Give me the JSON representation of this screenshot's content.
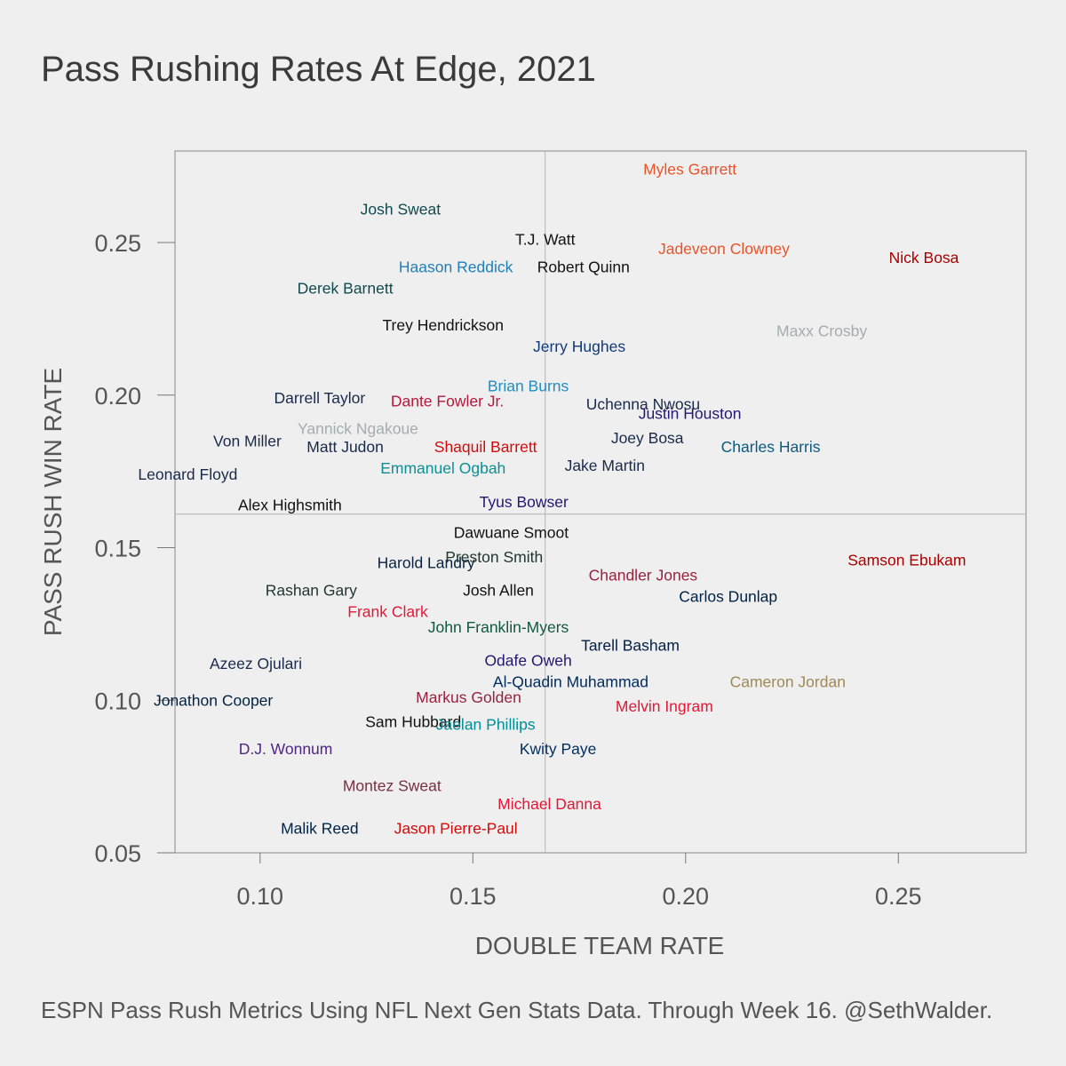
{
  "chart_data": {
    "type": "scatter",
    "title": "Pass Rushing Rates At Edge, 2021",
    "xlabel": "DOUBLE TEAM RATE",
    "ylabel": "PASS RUSH WIN RATE",
    "caption": "ESPN Pass Rush Metrics Using NFL Next Gen Stats Data. Through Week 16. @SethWalder.",
    "xlim": [
      0.08,
      0.28
    ],
    "ylim": [
      0.05,
      0.28
    ],
    "xticks": [
      0.1,
      0.15,
      0.2,
      0.25
    ],
    "yticks": [
      0.05,
      0.1,
      0.15,
      0.2,
      0.25
    ],
    "xtick_labels": [
      "0.10",
      "0.15",
      "0.20",
      "0.25"
    ],
    "ytick_labels": [
      "0.05",
      "0.10",
      "0.15",
      "0.20",
      "0.25"
    ],
    "reference_lines": {
      "x": 0.167,
      "y": 0.161
    },
    "points": [
      {
        "name": "Myles Garrett",
        "x": 0.201,
        "y": 0.274,
        "color": "#e8542a"
      },
      {
        "name": "Josh Sweat",
        "x": 0.133,
        "y": 0.261,
        "color": "#0f4a50"
      },
      {
        "name": "T.J. Watt",
        "x": 0.167,
        "y": 0.251,
        "color": "#111111"
      },
      {
        "name": "Jadeveon Clowney",
        "x": 0.209,
        "y": 0.248,
        "color": "#e8542a"
      },
      {
        "name": "Nick Bosa",
        "x": 0.256,
        "y": 0.245,
        "color": "#aa0000"
      },
      {
        "name": "Haason Reddick",
        "x": 0.146,
        "y": 0.242,
        "color": "#1f7fb8"
      },
      {
        "name": "Robert Quinn",
        "x": 0.176,
        "y": 0.242,
        "color": "#111111"
      },
      {
        "name": "Derek Barnett",
        "x": 0.12,
        "y": 0.235,
        "color": "#0f4a50"
      },
      {
        "name": "Trey Hendrickson",
        "x": 0.143,
        "y": 0.223,
        "color": "#111111"
      },
      {
        "name": "Maxx Crosby",
        "x": 0.232,
        "y": 0.221,
        "color": "#a5acaf"
      },
      {
        "name": "Jerry Hughes",
        "x": 0.175,
        "y": 0.216,
        "color": "#123a7a"
      },
      {
        "name": "Brian Burns",
        "x": 0.163,
        "y": 0.203,
        "color": "#1f8dc4"
      },
      {
        "name": "Darrell Taylor",
        "x": 0.114,
        "y": 0.199,
        "color": "#1a2a4a"
      },
      {
        "name": "Dante Fowler Jr.",
        "x": 0.144,
        "y": 0.198,
        "color": "#b5193c"
      },
      {
        "name": "Uchenna Nwosu",
        "x": 0.19,
        "y": 0.197,
        "color": "#1a2a4a"
      },
      {
        "name": "Justin Houston",
        "x": 0.201,
        "y": 0.194,
        "color": "#241773"
      },
      {
        "name": "Yannick Ngakoue",
        "x": 0.123,
        "y": 0.189,
        "color": "#a5acaf"
      },
      {
        "name": "Von Miller",
        "x": 0.097,
        "y": 0.185,
        "color": "#1a2a4a"
      },
      {
        "name": "Joey Bosa",
        "x": 0.191,
        "y": 0.186,
        "color": "#1a2a4a"
      },
      {
        "name": "Matt Judon",
        "x": 0.12,
        "y": 0.183,
        "color": "#1a2a4a"
      },
      {
        "name": "Shaquil Barrett",
        "x": 0.153,
        "y": 0.183,
        "color": "#d50a0a"
      },
      {
        "name": "Charles Harris",
        "x": 0.22,
        "y": 0.183,
        "color": "#0a5a80"
      },
      {
        "name": "Jake Martin",
        "x": 0.181,
        "y": 0.177,
        "color": "#1a2a4a"
      },
      {
        "name": "Emmanuel Ogbah",
        "x": 0.143,
        "y": 0.176,
        "color": "#0f8f94"
      },
      {
        "name": "Leonard Floyd",
        "x": 0.083,
        "y": 0.174,
        "color": "#1a2a4a"
      },
      {
        "name": "Tyus Bowser",
        "x": 0.162,
        "y": 0.165,
        "color": "#241773"
      },
      {
        "name": "Alex Highsmith",
        "x": 0.107,
        "y": 0.164,
        "color": "#111111"
      },
      {
        "name": "Dawuane Smoot",
        "x": 0.159,
        "y": 0.155,
        "color": "#111111"
      },
      {
        "name": "Samson Ebukam",
        "x": 0.252,
        "y": 0.146,
        "color": "#aa0000"
      },
      {
        "name": "Harold Landry",
        "x": 0.139,
        "y": 0.145,
        "color": "#0c2340"
      },
      {
        "name": "Preston Smith",
        "x": 0.155,
        "y": 0.147,
        "color": "#203731"
      },
      {
        "name": "Chandler Jones",
        "x": 0.19,
        "y": 0.141,
        "color": "#97233f"
      },
      {
        "name": "Carlos Dunlap",
        "x": 0.21,
        "y": 0.134,
        "color": "#002244"
      },
      {
        "name": "Josh Allen",
        "x": 0.156,
        "y": 0.136,
        "color": "#111111"
      },
      {
        "name": "Rashan Gary",
        "x": 0.112,
        "y": 0.136,
        "color": "#203731"
      },
      {
        "name": "Frank Clark",
        "x": 0.13,
        "y": 0.129,
        "color": "#e31837"
      },
      {
        "name": "John Franklin-Myers",
        "x": 0.156,
        "y": 0.124,
        "color": "#125740"
      },
      {
        "name": "Tarell Basham",
        "x": 0.187,
        "y": 0.118,
        "color": "#041e42"
      },
      {
        "name": "Odafe Oweh",
        "x": 0.163,
        "y": 0.113,
        "color": "#241773"
      },
      {
        "name": "Azeez Ojulari",
        "x": 0.099,
        "y": 0.112,
        "color": "#1a2a4a"
      },
      {
        "name": "Al-Quadin Muhammad",
        "x": 0.173,
        "y": 0.106,
        "color": "#002c5f"
      },
      {
        "name": "Cameron Jordan",
        "x": 0.224,
        "y": 0.106,
        "color": "#9f8958"
      },
      {
        "name": "Markus Golden",
        "x": 0.149,
        "y": 0.101,
        "color": "#97233f"
      },
      {
        "name": "Jonathon Cooper",
        "x": 0.089,
        "y": 0.1,
        "color": "#002244"
      },
      {
        "name": "Melvin Ingram",
        "x": 0.195,
        "y": 0.098,
        "color": "#e31837"
      },
      {
        "name": "Sam Hubbard",
        "x": 0.136,
        "y": 0.093,
        "color": "#111111"
      },
      {
        "name": "Jaelan Phillips",
        "x": 0.153,
        "y": 0.092,
        "color": "#008e97"
      },
      {
        "name": "Kwity Paye",
        "x": 0.17,
        "y": 0.084,
        "color": "#002c5f"
      },
      {
        "name": "D.J. Wonnum",
        "x": 0.106,
        "y": 0.084,
        "color": "#4f2683"
      },
      {
        "name": "Montez Sweat",
        "x": 0.131,
        "y": 0.072,
        "color": "#773141"
      },
      {
        "name": "Michael Danna",
        "x": 0.168,
        "y": 0.066,
        "color": "#e31837"
      },
      {
        "name": "Malik Reed",
        "x": 0.114,
        "y": 0.058,
        "color": "#002244"
      },
      {
        "name": "Jason Pierre-Paul",
        "x": 0.146,
        "y": 0.058,
        "color": "#d50a0a"
      }
    ]
  }
}
